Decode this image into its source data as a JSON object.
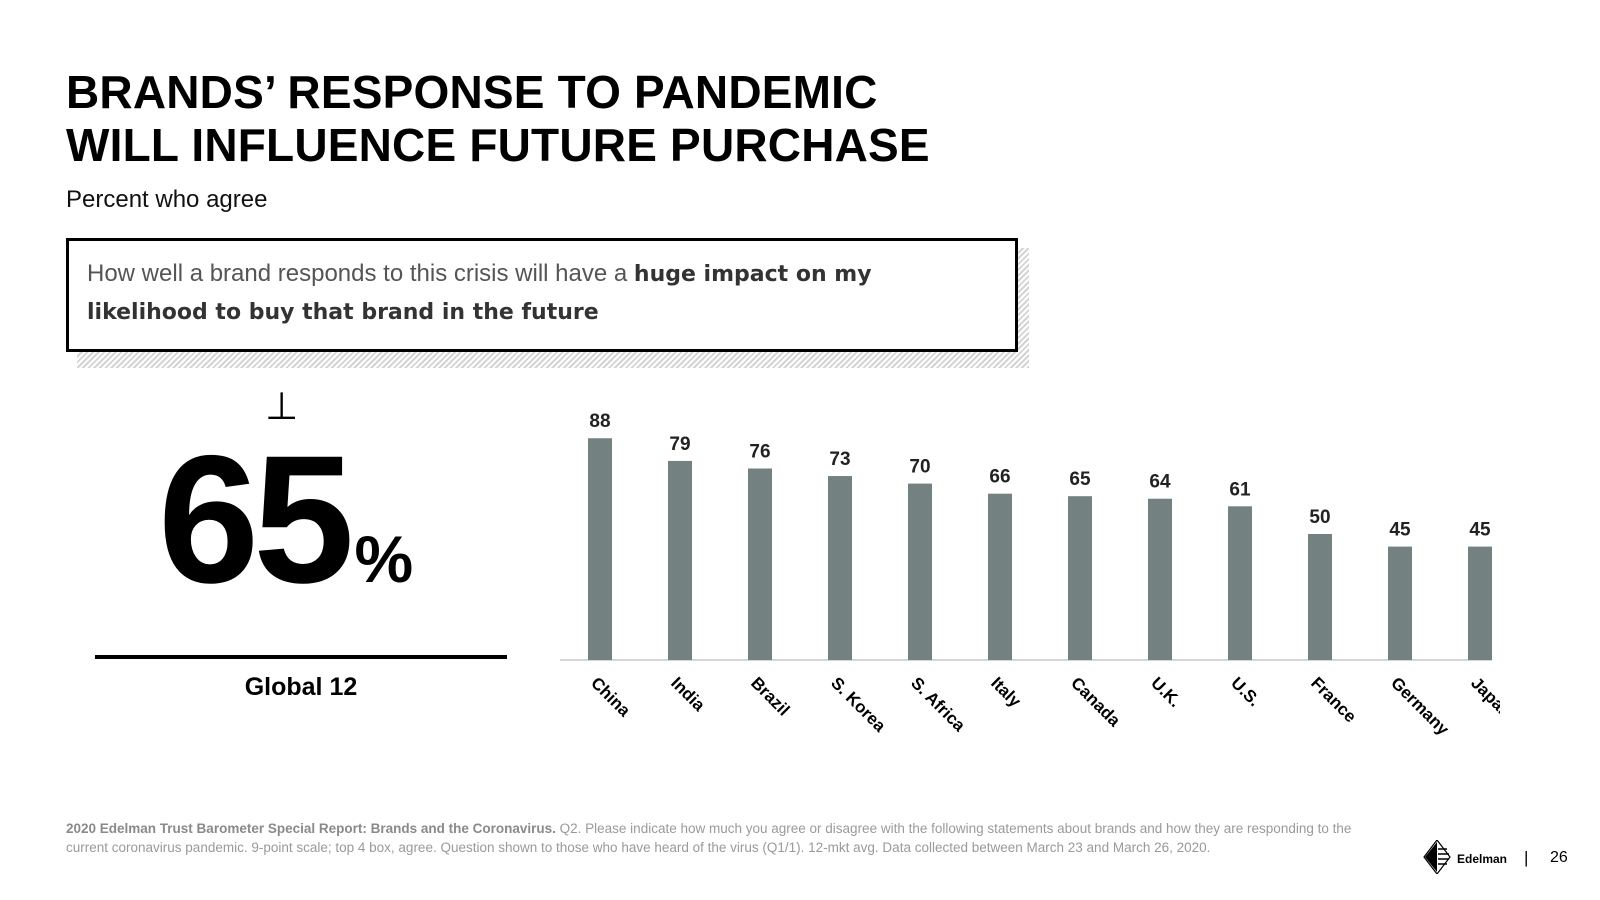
{
  "slide": {
    "title_line1": "BRANDS’ RESPONSE TO PANDEMIC",
    "title_line2": "WILL INFLUENCE FUTURE PURCHASE",
    "subtitle": "Percent who agree",
    "quote_plain": "How well a brand responds to this crisis will have a ",
    "quote_bold": "huge impact on my likelihood to buy that brand in the future",
    "perp_symbol": "⊥",
    "global_value": "65",
    "global_unit": "%",
    "global_label": "Global 12",
    "footer_bold": "2020 Edelman Trust Barometer Special Report: Brands and the Coronavirus.",
    "footer_text": " Q2. Please indicate how much you agree or disagree with the following statements about brands and how they are responding to the current coronavirus pandemic. 9-point scale; top 4 box, agree. Question shown to those who have heard of the virus (Q1/1). 12-mkt avg. Data collected between March 23 and March 26, 2020.",
    "brand_name": "Edelman",
    "separator": "|",
    "page_number": "26"
  },
  "chart_data": {
    "type": "bar",
    "categories": [
      "China",
      "India",
      "Brazil",
      "S. Korea",
      "S. Africa",
      "Italy",
      "Canada",
      "U.K.",
      "U.S.",
      "France",
      "Germany",
      "Japan"
    ],
    "values": [
      88,
      79,
      76,
      73,
      70,
      66,
      65,
      64,
      61,
      50,
      45,
      45
    ],
    "ylim": [
      0,
      100
    ],
    "bar_color": "#738281",
    "data_labels": true,
    "grid": false,
    "legend": "none"
  }
}
